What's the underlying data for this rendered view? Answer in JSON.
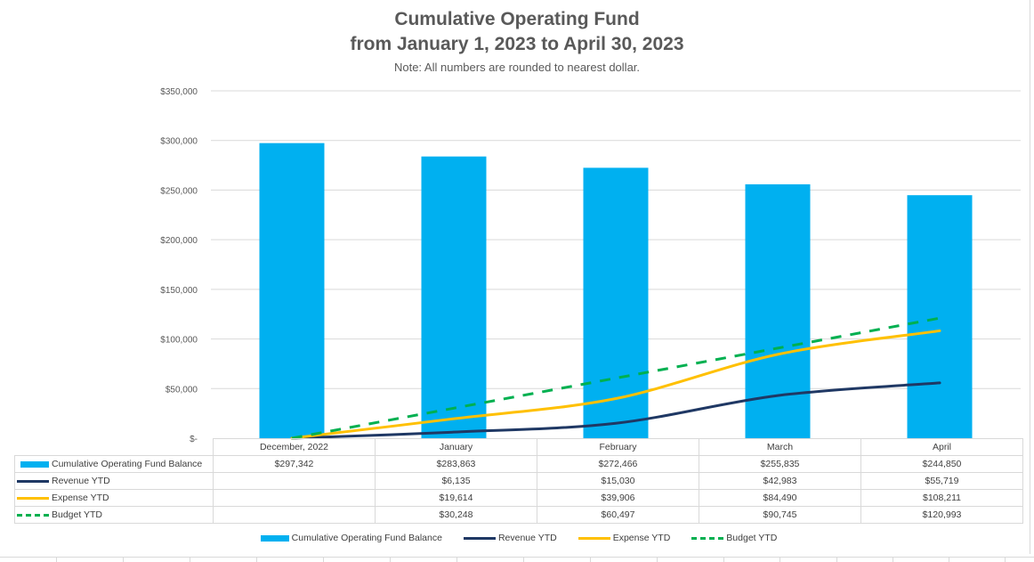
{
  "chart_data": {
    "type": "bar",
    "title": "Cumulative Operating Fund",
    "subtitle": "from January 1, 2023 to April 30, 2023",
    "note": "Note: All numbers are rounded to nearest dollar.",
    "categories": [
      "December, 2022",
      "January",
      "February",
      "March",
      "April"
    ],
    "ylim": [
      0,
      350000
    ],
    "yticks": [
      0,
      50000,
      100000,
      150000,
      200000,
      250000,
      300000,
      350000
    ],
    "ytick_labels": [
      "$-",
      "$50,000",
      "$100,000",
      "$150,000",
      "$200,000",
      "$250,000",
      "$300,000",
      "$350,000"
    ],
    "grid": true,
    "legend_position": "bottom",
    "series": [
      {
        "name": "Cumulative Operating Fund Balance",
        "type": "bar",
        "color": "#00B0F0",
        "values": [
          297342,
          283863,
          272466,
          255835,
          244850
        ],
        "labels": [
          "$297,342",
          "$283,863",
          "$272,466",
          "$255,835",
          "$244,850"
        ]
      },
      {
        "name": "Revenue YTD",
        "type": "line",
        "color": "#1F3864",
        "style": "solid",
        "values": [
          0,
          6135,
          15030,
          42983,
          55719
        ],
        "labels": [
          "",
          "$6,135",
          "$15,030",
          "$42,983",
          "$55,719"
        ]
      },
      {
        "name": "Expense YTD",
        "type": "line",
        "color": "#FFC000",
        "style": "solid",
        "values": [
          0,
          19614,
          39906,
          84490,
          108211
        ],
        "labels": [
          "",
          "$19,614",
          "$39,906",
          "$84,490",
          "$108,211"
        ]
      },
      {
        "name": "Budget YTD",
        "type": "line",
        "color": "#00B050",
        "style": "dashed",
        "values": [
          0,
          30248,
          60497,
          90745,
          120993
        ],
        "labels": [
          "",
          "$30,248",
          "$60,497",
          "$90,745",
          "$120,993"
        ]
      }
    ]
  }
}
